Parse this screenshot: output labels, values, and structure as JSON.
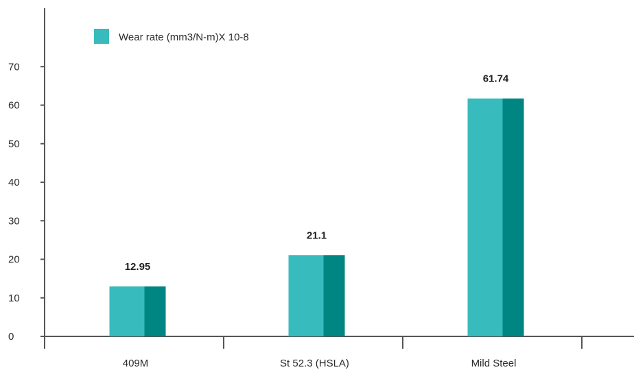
{
  "chart_data": {
    "type": "bar",
    "categories": [
      "409M",
      "St 52.3 (HSLA)",
      "Mild Steel"
    ],
    "series": [
      {
        "name": "Wear rate (mm3/N-m)X 10-8",
        "values": [
          12.95,
          21.1,
          61.74
        ],
        "data_labels": [
          "12.95",
          "21.1",
          "61.74"
        ],
        "color": "#38bbbd",
        "shade_color": "#008682"
      }
    ],
    "title": "",
    "xlabel": "",
    "ylabel": "",
    "ylim": [
      0,
      75
    ],
    "yticks": [
      0,
      10,
      20,
      30,
      40,
      50,
      60,
      70
    ],
    "ytick_labels": [
      "0",
      "10",
      "20",
      "30",
      "40",
      "50",
      "60",
      "70"
    ],
    "grid": false,
    "legend_position": "top-left",
    "axis_color": "#555555"
  }
}
